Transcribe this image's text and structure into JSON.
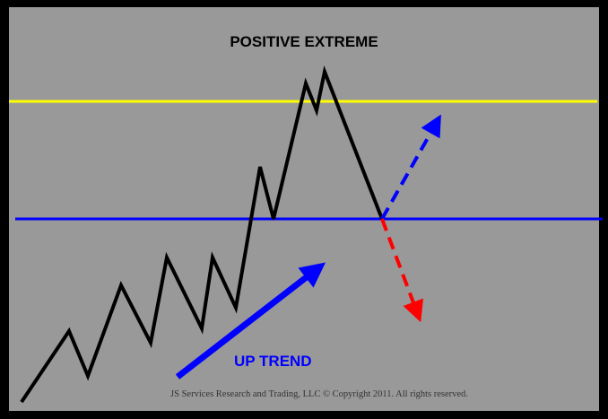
{
  "title": "POSITIVE EXTREME",
  "trend_label": "UP TREND",
  "copyright": "JS Services Research and Trading, LLC © Copyright 2011. All rights reserved.",
  "colors": {
    "background": "#999999",
    "frame": "#000000",
    "yellow_line": "#ffff00",
    "blue_line": "#0000ff",
    "price_line": "#000000",
    "up_arrow": "#0000ff",
    "down_arrow": "#ff0000",
    "trend_arrow": "#0000ff"
  }
}
